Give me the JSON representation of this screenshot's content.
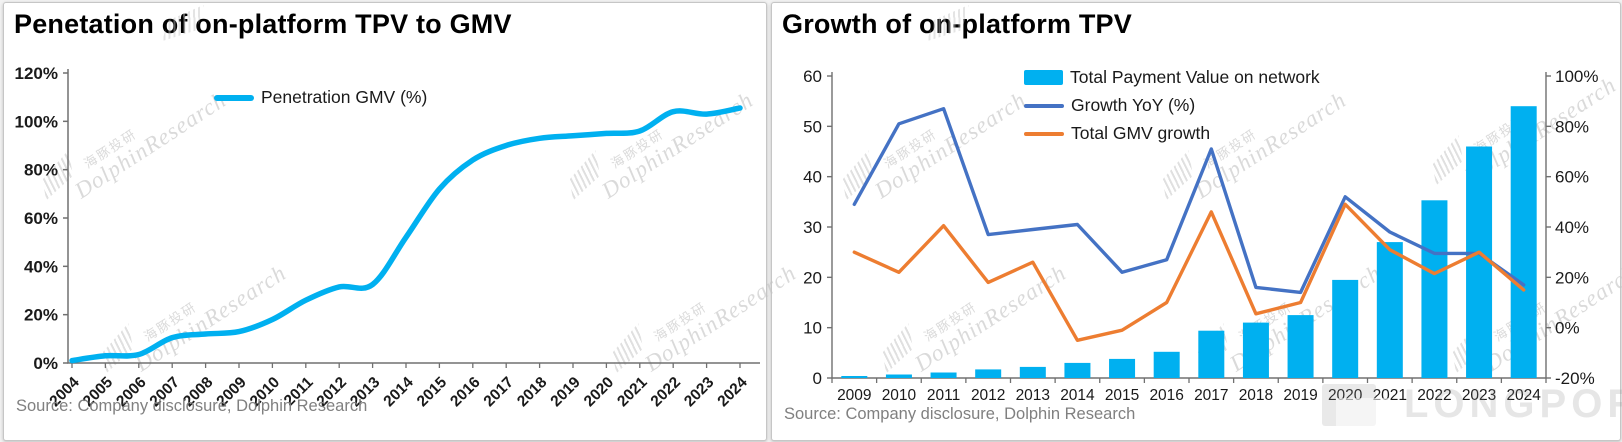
{
  "watermark": {
    "cn": "海豚投研",
    "en": "DolphinResearch",
    "brand": "LONGPORT"
  },
  "colors": {
    "cyan": "#00B0F0",
    "blue": "#4472C4",
    "orange": "#ED7D31",
    "axis": "#707070",
    "tick_label": "#1a1a1a",
    "source_text": "#808080"
  },
  "charts": [
    {
      "title": "Penetation of on-platform TPV to GMV",
      "source": "Source: Company disclosure, Dolphin Research",
      "chart_data": {
        "type": "line",
        "categories": [
          "2004",
          "2005",
          "2006",
          "2007",
          "2008",
          "2009",
          "2010",
          "2011",
          "2012",
          "2013",
          "2014",
          "2015",
          "2016",
          "2017",
          "2018",
          "2019",
          "2020",
          "2021",
          "2022",
          "2023",
          "2024"
        ],
        "series": [
          {
            "name": "Penetration GMV (%)",
            "color": "#00B0F0",
            "values": [
              1,
              3,
              3.5,
              10.5,
              12,
              13,
              18,
              26,
              31.5,
              32.5,
              52,
              72,
              84,
              90,
              93,
              94,
              95,
              96,
              104,
              103,
              105.5
            ]
          }
        ],
        "ylim": [
          0,
          120
        ],
        "y_ticks": [
          "0%",
          "20%",
          "40%",
          "60%",
          "80%",
          "100%",
          "120%"
        ],
        "grid": false,
        "legend_position": "top-left-inside",
        "x_label_rotation": -45
      }
    },
    {
      "title": "Growth of on-platform TPV",
      "source": "Source: Company disclosure,  Dolphin Research",
      "chart_data": {
        "type": "combo",
        "categories": [
          "2009",
          "2010",
          "2011",
          "2012",
          "2013",
          "2014",
          "2015",
          "2016",
          "2017",
          "2018",
          "2019",
          "2020",
          "2021",
          "2022",
          "2023",
          "2024"
        ],
        "series": [
          {
            "name": "Total Payment Value on network",
            "kind": "bar",
            "axis": "left",
            "color": "#00B0F0",
            "values": [
              0.4,
              0.7,
              1.1,
              1.7,
              2.2,
              3,
              3.8,
              5.2,
              9.4,
              11,
              12.5,
              19.5,
              27,
              35.3,
              46,
              54
            ]
          },
          {
            "name": "Growth YoY (%)",
            "kind": "line",
            "axis": "right",
            "color": "#4472C4",
            "values": [
              49,
              81,
              87,
              37,
              39,
              41,
              22,
              27,
              71,
              16,
              14,
              52,
              38,
              29.5,
              29.5,
              17
            ]
          },
          {
            "name": "Total GMV growth",
            "kind": "line",
            "axis": "right",
            "color": "#ED7D31",
            "values": [
              30,
              22,
              40.5,
              18,
              26,
              -5,
              -1,
              10,
              46,
              5.5,
              10,
              49,
              31,
              21.5,
              30,
              15
            ]
          }
        ],
        "left_axis": {
          "lim": [
            0,
            60
          ],
          "ticks": [
            "0",
            "10",
            "20",
            "30",
            "40",
            "50",
            "60"
          ]
        },
        "right_axis": {
          "lim": [
            -20,
            100
          ],
          "ticks": [
            "-20%",
            "0%",
            "20%",
            "40%",
            "60%",
            "80%",
            "100%"
          ]
        },
        "grid": false,
        "legend_position": "top-center-inside"
      }
    }
  ]
}
